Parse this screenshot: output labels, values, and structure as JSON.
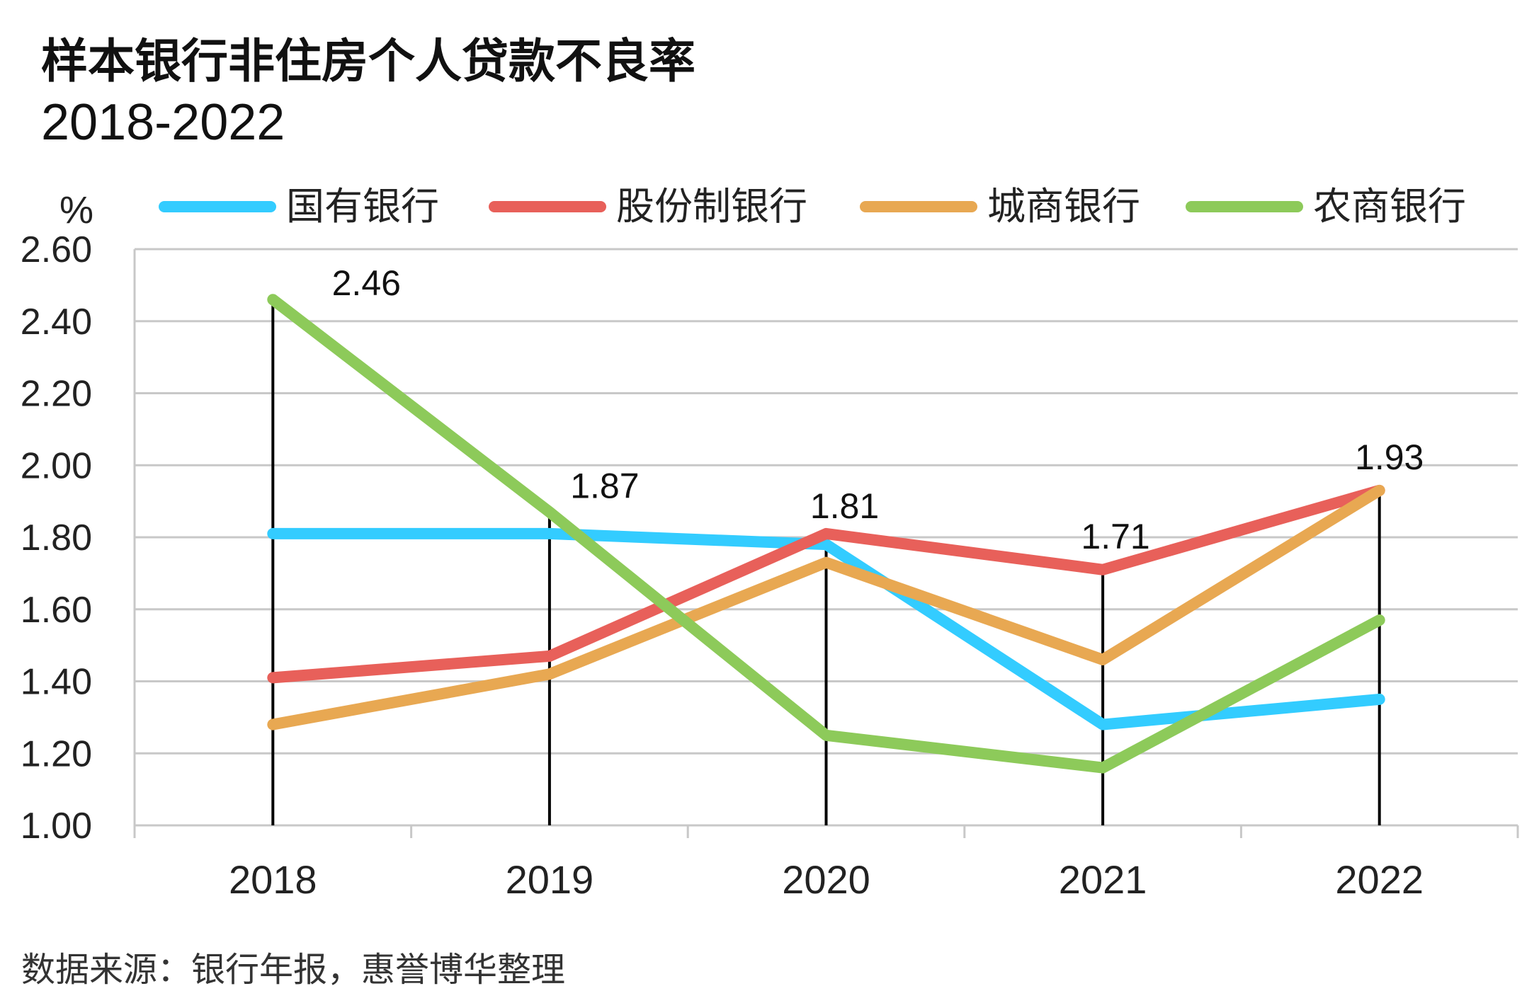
{
  "title": "样本银行非住房个人贷款不良率",
  "subtitle": "2018-2022",
  "source": "数据来源：银行年报，惠誉博华整理",
  "chart_data": {
    "type": "line",
    "y_unit_label": "%",
    "categories": [
      "2018",
      "2019",
      "2020",
      "2021",
      "2022"
    ],
    "ylim": [
      1.0,
      2.6
    ],
    "y_ticks": [
      "1.00",
      "1.20",
      "1.40",
      "1.60",
      "1.80",
      "2.00",
      "2.20",
      "2.40",
      "2.60"
    ],
    "grid": true,
    "legend_position": "top",
    "series": [
      {
        "name": "国有银行",
        "color": "#33CCFF",
        "values": [
          1.81,
          1.81,
          1.78,
          1.28,
          1.35
        ]
      },
      {
        "name": "股份制银行",
        "color": "#E8605A",
        "values": [
          1.41,
          1.47,
          1.81,
          1.71,
          1.93
        ]
      },
      {
        "name": "城商银行",
        "color": "#E8A852",
        "values": [
          1.28,
          1.42,
          1.73,
          1.46,
          1.93
        ]
      },
      {
        "name": "农商银行",
        "color": "#8DCA5A",
        "values": [
          2.46,
          1.87,
          1.25,
          1.16,
          1.57
        ]
      }
    ],
    "drop_lines": [
      2.46,
      1.87,
      1.81,
      1.71,
      1.93
    ],
    "data_labels": [
      "2.46",
      "1.87",
      "1.81",
      "1.71",
      "1.93"
    ]
  }
}
